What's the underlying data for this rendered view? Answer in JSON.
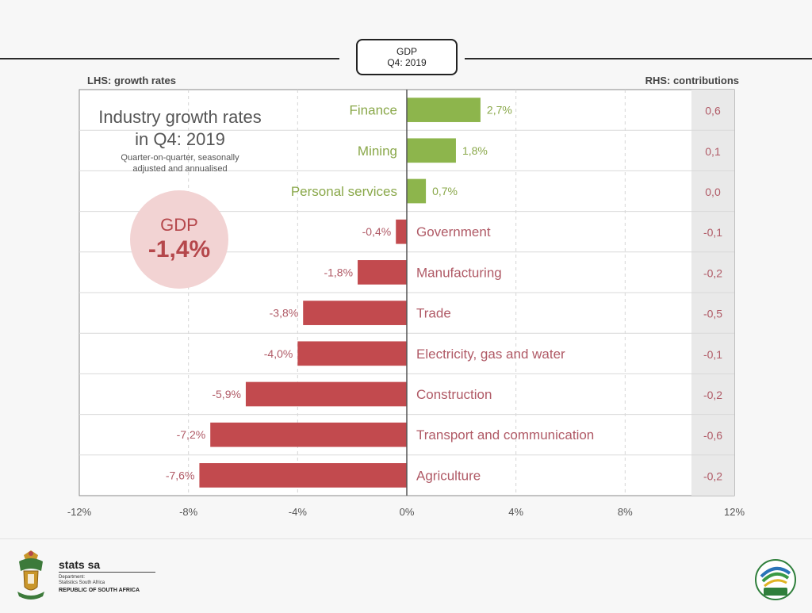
{
  "header": {
    "line1": "GDP",
    "line2": "Q4: 2019"
  },
  "captions": {
    "lhs": "LHS: growth rates",
    "rhs": "RHS: contributions"
  },
  "inset": {
    "title": "Industry growth rates in Q4: 2019",
    "subtitle": "Quarter-on-quarter, seasonally adjusted and annualised",
    "gdp_label": "GDP",
    "gdp_value": "-1,4%"
  },
  "colors": {
    "positive": "#8db54c",
    "negative": "#c24a4e",
    "label_negative": "#b05a66",
    "label_positive": "#8aa84a",
    "contrib_text": "#b05a66",
    "contrib_bg": "#e9e9e9",
    "grid": "#d6d6d6"
  },
  "chart_data": {
    "type": "bar",
    "orientation": "horizontal",
    "categories": [
      "Finance",
      "Mining",
      "Personal services",
      "Government",
      "Manufacturing",
      "Trade",
      "Electricity, gas and water",
      "Construction",
      "Transport and communication",
      "Agriculture"
    ],
    "values": [
      2.7,
      1.8,
      0.7,
      -0.4,
      -1.8,
      -3.8,
      -4.0,
      -5.9,
      -7.2,
      -7.6
    ],
    "value_labels": [
      "2,7%",
      "1,8%",
      "0,7%",
      "-0,4%",
      "-1,8%",
      "-3,8%",
      "-4,0%",
      "-5,9%",
      "-7,2%",
      "-7,6%"
    ],
    "contributions": [
      0.6,
      0.1,
      0.0,
      -0.1,
      -0.2,
      -0.5,
      -0.1,
      -0.2,
      -0.6,
      -0.2
    ],
    "contribution_labels": [
      "0,6",
      "0,1",
      "0,0",
      "-0,1",
      "-0,2",
      "-0,5",
      "-0,1",
      "-0,2",
      "-0,6",
      "-0,2"
    ],
    "xlim": [
      -12,
      12
    ],
    "x_ticks": [
      -12,
      -8,
      -4,
      0,
      4,
      8,
      12
    ],
    "x_tick_labels": [
      "-12%",
      "-8%",
      "-4%",
      "0%",
      "4%",
      "8%",
      "12%"
    ],
    "grid": true,
    "legend": "none"
  },
  "footer": {
    "org_name": "stats sa",
    "dept_line1": "Department:",
    "dept_line2": "Statistics South Africa",
    "country": "REPUBLIC OF SOUTH AFRICA"
  }
}
